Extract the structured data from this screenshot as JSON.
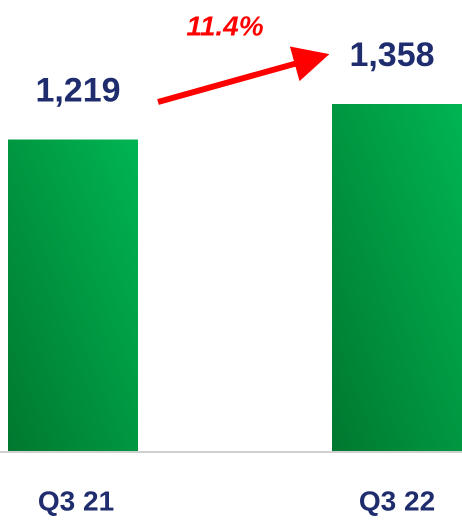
{
  "chart_data": {
    "type": "bar",
    "categories": [
      "Q3 21",
      "Q3 22"
    ],
    "values": [
      1219,
      1358
    ],
    "value_labels": [
      "1,219",
      "1,358"
    ],
    "color": "#00b050",
    "annotation": "11.4%"
  }
}
